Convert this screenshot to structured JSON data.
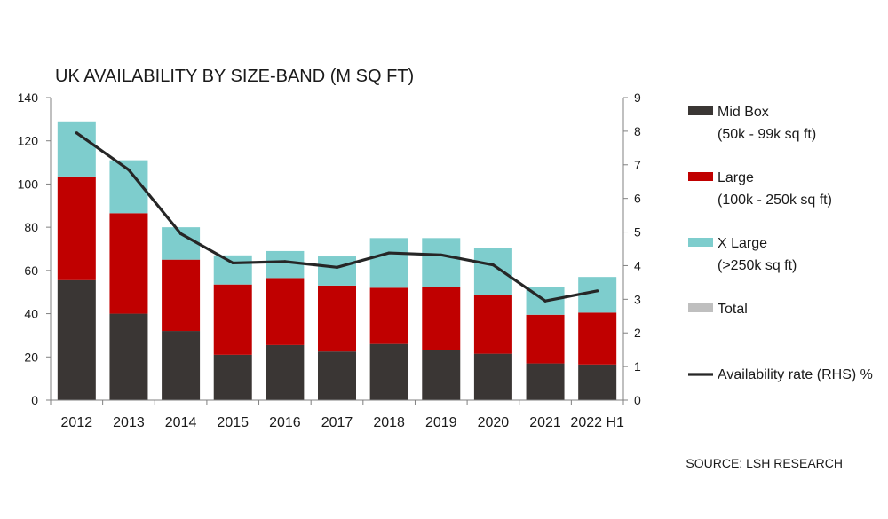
{
  "chart_data": {
    "type": "bar",
    "stacked": true,
    "title": "UK AVAILABILITY BY SIZE-BAND (M SQ FT)",
    "categories": [
      "2012",
      "2013",
      "2014",
      "2015",
      "2016",
      "2017",
      "2018",
      "2019",
      "2020",
      "2021",
      "2022 H1"
    ],
    "ylim": [
      0,
      140
    ],
    "yticks": [
      "0",
      "20",
      "40",
      "60",
      "80",
      "100",
      "120",
      "140"
    ],
    "y2lim": [
      0,
      9
    ],
    "y2ticks": [
      "0",
      "1",
      "2",
      "3",
      "4",
      "5",
      "6",
      "7",
      "8",
      "9"
    ],
    "series": [
      {
        "name": "Mid Box",
        "sub": "(50k - 99k sq ft)",
        "color": "#3a3634",
        "values": [
          55.5,
          40,
          32,
          21,
          25.5,
          22.5,
          26,
          23,
          21.5,
          17,
          16.5
        ]
      },
      {
        "name": "Large",
        "sub": "(100k - 250k sq ft)",
        "color": "#c00000",
        "values": [
          48,
          46.5,
          33,
          32.5,
          31,
          30.5,
          26,
          29.5,
          27,
          22.5,
          24
        ]
      },
      {
        "name": "X Large",
        "sub": "(>250k sq ft)",
        "color": "#7ecdcd",
        "values": [
          25.5,
          24.5,
          15,
          13.5,
          12.5,
          13.5,
          23,
          22.5,
          22,
          13,
          16.5
        ]
      }
    ],
    "total_label": "Total",
    "total_color": "#bfbfbf",
    "line": {
      "name": "Availability rate (RHS) %",
      "color": "#262626",
      "axis": "right",
      "values": [
        7.95,
        6.85,
        4.95,
        4.08,
        4.12,
        3.95,
        4.38,
        4.32,
        4.02,
        2.95,
        3.25
      ]
    },
    "grid": false,
    "legend_position": "right",
    "source": "SOURCE: LSH RESEARCH"
  }
}
